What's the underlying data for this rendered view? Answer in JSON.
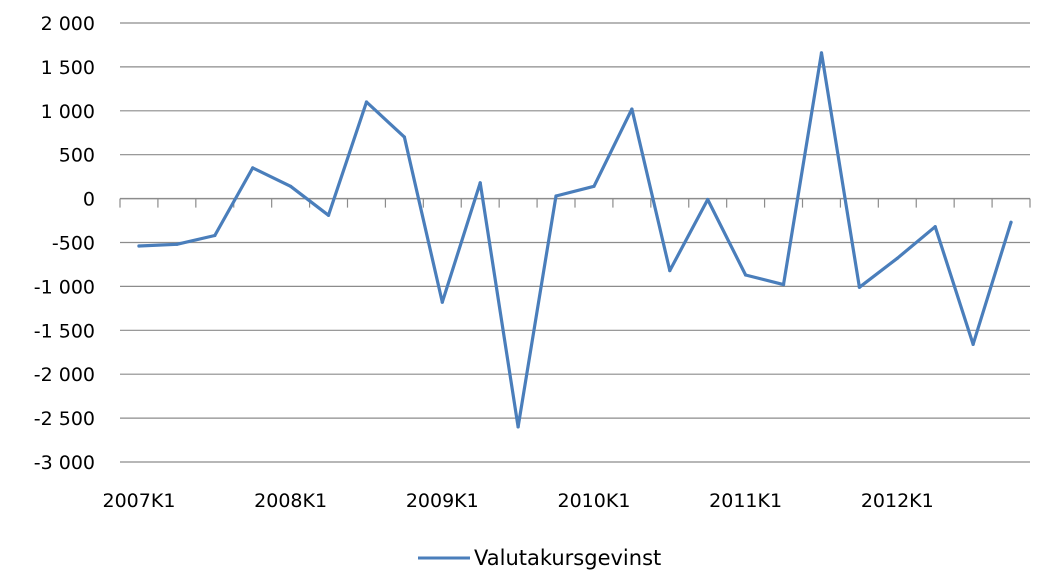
{
  "chart_data": {
    "type": "line",
    "title": "",
    "xlabel": "",
    "ylabel": "",
    "ylim": [
      -3000,
      2000
    ],
    "y_ticks": [
      2000,
      1500,
      1000,
      500,
      0,
      -500,
      -1000,
      -1500,
      -2000,
      -2500,
      -3000
    ],
    "y_tick_labels": [
      "2 000",
      "1 500",
      "1 000",
      "500",
      "0",
      "-500",
      "-1 000",
      "-1 500",
      "-2 000",
      "-2 500",
      "-3 000"
    ],
    "categories": [
      "2007K1",
      "2007K2",
      "2007K3",
      "2007K4",
      "2008K1",
      "2008K2",
      "2008K3",
      "2008K4",
      "2009K1",
      "2009K2",
      "2009K3",
      "2009K4",
      "2010K1",
      "2010K2",
      "2010K3",
      "2010K4",
      "2011K1",
      "2011K2",
      "2011K3",
      "2011K4",
      "2012K1",
      "2012K2",
      "2012K3",
      "2012K4"
    ],
    "x_tick_labels": [
      "2007K1",
      "2008K1",
      "2009K1",
      "2010K1",
      "2011K1",
      "2012K1"
    ],
    "grid": {
      "horizontal": true,
      "vertical": false
    },
    "legend": {
      "position": "bottom"
    },
    "series": [
      {
        "name": "Valutakursgevinst",
        "color": "#4a7ebb",
        "values": [
          -540,
          -520,
          -420,
          350,
          140,
          -190,
          1100,
          700,
          -1180,
          180,
          -2600,
          30,
          140,
          1020,
          -820,
          -10,
          -870,
          -980,
          1660,
          -1010,
          -680,
          -320,
          -1660,
          -270
        ]
      }
    ]
  }
}
